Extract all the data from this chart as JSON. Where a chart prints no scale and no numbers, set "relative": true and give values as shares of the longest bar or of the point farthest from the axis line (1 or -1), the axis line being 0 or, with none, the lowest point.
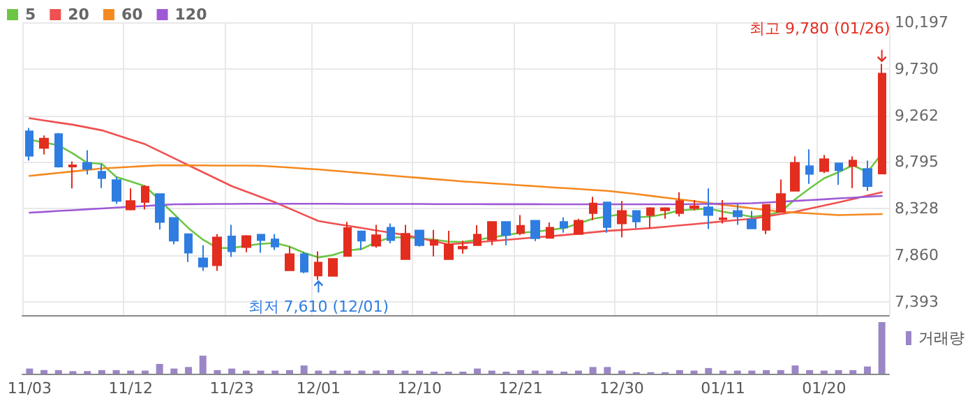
{
  "chart_data": [
    {
      "type": "candlestick",
      "legend": "top left",
      "tick_labels": "y",
      "grid": true,
      "marker": "none",
      "categories": [
        "11/03",
        null,
        null,
        null,
        null,
        null,
        null,
        "11/12",
        null,
        null,
        null,
        null,
        null,
        null,
        "11/23",
        null,
        null,
        null,
        null,
        null,
        "12/01",
        null,
        null,
        null,
        null,
        null,
        null,
        "12/10",
        null,
        null,
        null,
        null,
        null,
        null,
        "12/21",
        null,
        null,
        null,
        null,
        null,
        null,
        "12/30",
        null,
        null,
        null,
        null,
        null,
        null,
        "01/11",
        null,
        null,
        null,
        null,
        null,
        null,
        "01/20",
        null,
        null,
        null,
        null
      ],
      "ohlc": [
        [
          9104,
          9136,
          8809,
          8856
        ],
        [
          8935,
          9061,
          8870,
          9029
        ],
        [
          9076,
          9085,
          8739,
          8748
        ],
        [
          8748,
          8800,
          8529,
          8762
        ],
        [
          8786,
          8912,
          8669,
          8725
        ],
        [
          8697,
          8776,
          8533,
          8632
        ],
        [
          8613,
          8645,
          8375,
          8403
        ],
        [
          8318,
          8529,
          8309,
          8403
        ],
        [
          8393,
          8561,
          8318,
          8547
        ],
        [
          8473,
          8473,
          8117,
          8192
        ],
        [
          8234,
          8234,
          7968,
          8005
        ],
        [
          8071,
          8071,
          7790,
          7884
        ],
        [
          7828,
          7959,
          7702,
          7744
        ],
        [
          7758,
          8071,
          7702,
          8038
        ],
        [
          8048,
          8164,
          7842,
          7898
        ],
        [
          7940,
          8061,
          7888,
          8052
        ],
        [
          8066,
          8066,
          7884,
          8010
        ],
        [
          8019,
          8071,
          7912,
          7944
        ],
        [
          7706,
          7945,
          7706,
          7870
        ],
        [
          7870,
          7893,
          7678,
          7692
        ],
        [
          7655,
          7898,
          7610,
          7786
        ],
        [
          7651,
          7823,
          7651,
          7823
        ],
        [
          7851,
          8193,
          7851,
          8132
        ],
        [
          8099,
          8099,
          7912,
          8005
        ],
        [
          7954,
          8164,
          7935,
          8061
        ],
        [
          8136,
          8178,
          7978,
          8010
        ],
        [
          7818,
          8164,
          7818,
          8075
        ],
        [
          8108,
          8108,
          7945,
          7959
        ],
        [
          7963,
          8113,
          7846,
          8010
        ],
        [
          7818,
          8104,
          7818,
          7968
        ],
        [
          7926,
          8005,
          7875,
          7945
        ],
        [
          7959,
          8160,
          7959,
          8066
        ],
        [
          8015,
          8193,
          7959,
          8193
        ],
        [
          8193,
          8193,
          7959,
          8061
        ],
        [
          8080,
          8262,
          8061,
          8155
        ],
        [
          8206,
          8206,
          8001,
          8029
        ],
        [
          8033,
          8188,
          8029,
          8136
        ],
        [
          8193,
          8239,
          8085,
          8136
        ],
        [
          8071,
          8225,
          8071,
          8206
        ],
        [
          8281,
          8445,
          8211,
          8379
        ],
        [
          8389,
          8389,
          8085,
          8141
        ],
        [
          8178,
          8403,
          8038,
          8304
        ],
        [
          8304,
          8304,
          8131,
          8197
        ],
        [
          8262,
          8341,
          8127,
          8332
        ],
        [
          8309,
          8341,
          8225,
          8332
        ],
        [
          8281,
          8491,
          8248,
          8403
        ],
        [
          8332,
          8412,
          8309,
          8351
        ],
        [
          8341,
          8529,
          8122,
          8262
        ],
        [
          8220,
          8412,
          8178,
          8230
        ],
        [
          8304,
          8379,
          8164,
          8248
        ],
        [
          8216,
          8304,
          8122,
          8127
        ],
        [
          8113,
          8365,
          8071,
          8365
        ],
        [
          8295,
          8618,
          8295,
          8473
        ],
        [
          8505,
          8851,
          8505,
          8786
        ],
        [
          8753,
          8921,
          8575,
          8674
        ],
        [
          8702,
          8865,
          8683,
          8823
        ],
        [
          8781,
          8781,
          8566,
          8711
        ],
        [
          8753,
          8851,
          8533,
          8809
        ],
        [
          8725,
          8809,
          8505,
          8552
        ],
        [
          8678,
          9780,
          8678,
          9683
        ]
      ],
      "series": [
        {
          "name": "5",
          "type": "line",
          "color": "#6cc644",
          "values": [
            9019,
            8990,
            8963,
            8880,
            8786,
            8776,
            8645,
            8600,
            8552,
            8412,
            8272,
            8131,
            8015,
            7931,
            7931,
            7954,
            7973,
            7982,
            7945,
            7884,
            7837,
            7860,
            7907,
            7921,
            7991,
            8038,
            8038,
            8029,
            8015,
            7996,
            7991,
            8015,
            8038,
            8061,
            8085,
            8094,
            8113,
            8131,
            8178,
            8225,
            8248,
            8272,
            8239,
            8248,
            8272,
            8309,
            8318,
            8328,
            8295,
            8272,
            8244,
            8262,
            8295,
            8421,
            8529,
            8631,
            8692,
            8762,
            8692,
            8879
          ]
        },
        {
          "name": "20",
          "type": "line",
          "color": "#f05050",
          "values": [
            9234,
            9212,
            9190,
            9169,
            9141,
            9113,
            9066,
            9020,
            8973,
            8903,
            8833,
            8762,
            8692,
            8622,
            8552,
            8498,
            8443,
            8389,
            8327,
            8264,
            8202,
            8178,
            8155,
            8132,
            8108,
            8085,
            8061,
            8030,
            7999,
            7968,
            7979,
            7990,
            8001,
            8013,
            8025,
            8037,
            8049,
            8061,
            8075,
            8089,
            8103,
            8112,
            8122,
            8131,
            8144,
            8158,
            8171,
            8185,
            8198,
            8212,
            8225,
            8248,
            8272,
            8295,
            8326,
            8358,
            8389,
            8423,
            8457,
            8491
          ]
        },
        {
          "name": "60",
          "type": "line",
          "color": "#f5891f",
          "values": [
            8655,
            8670,
            8685,
            8700,
            8715,
            8730,
            8738,
            8746,
            8754,
            8762,
            8761,
            8761,
            8760,
            8759,
            8758,
            8758,
            8757,
            8748,
            8739,
            8729,
            8720,
            8708,
            8695,
            8683,
            8671,
            8659,
            8647,
            8635,
            8623,
            8611,
            8599,
            8590,
            8580,
            8571,
            8561,
            8552,
            8542,
            8533,
            8524,
            8514,
            8505,
            8489,
            8473,
            8455,
            8437,
            8419,
            8401,
            8383,
            8365,
            8348,
            8330,
            8313,
            8295,
            8287,
            8279,
            8270,
            8262,
            8265,
            8269,
            8272
          ]
        },
        {
          "name": "120",
          "type": "line",
          "color": "#9e5ad6",
          "values": [
            8286,
            8294,
            8303,
            8311,
            8320,
            8328,
            8337,
            8345,
            8353,
            8362,
            8370,
            8371,
            8372,
            8373,
            8374,
            8375,
            8375,
            8375,
            8375,
            8375,
            8375,
            8375,
            8374,
            8374,
            8374,
            8373,
            8373,
            8373,
            8372,
            8372,
            8372,
            8372,
            8371,
            8371,
            8371,
            8371,
            8370,
            8370,
            8370,
            8370,
            8370,
            8370,
            8370,
            8370,
            8370,
            8370,
            8372,
            8374,
            8376,
            8378,
            8380,
            8388,
            8396,
            8404,
            8412,
            8420,
            8429,
            8437,
            8446,
            8454
          ]
        }
      ],
      "ylim": [
        7257,
        10197
      ],
      "yticks": [
        {
          "value": 7393,
          "label": "7,393"
        },
        {
          "value": 7860,
          "label": "7,860"
        },
        {
          "value": 8328,
          "label": "8,328"
        },
        {
          "value": 8795,
          "label": "8,795"
        },
        {
          "value": 9262,
          "label": "9,262"
        },
        {
          "value": 9730,
          "label": "9,730"
        },
        {
          "value": 10197,
          "label": "10,197"
        }
      ],
      "annotations": [
        "최고 9,780 (01/26)",
        {
          "text": "최저 7,610 (12/01)",
          "x": "12/01",
          "y": 7610
        }
      ]
    },
    {
      "type": "bar",
      "relative": true,
      "tick_labels": "x",
      "legend": "top right",
      "categories": [
        "11/03",
        null,
        null,
        null,
        null,
        null,
        null,
        "11/12",
        null,
        null,
        null,
        null,
        null,
        null,
        "11/23",
        null,
        null,
        null,
        null,
        null,
        "12/01",
        null,
        null,
        null,
        null,
        null,
        null,
        "12/10",
        null,
        null,
        null,
        null,
        null,
        null,
        "12/21",
        null,
        null,
        null,
        null,
        null,
        null,
        "12/30",
        null,
        null,
        null,
        null,
        null,
        null,
        "01/11",
        null,
        null,
        null,
        null,
        null,
        null,
        "01/20",
        null,
        null,
        null,
        null
      ],
      "series": [
        {
          "name": "거래량",
          "color": "#9b86c6",
          "values": [
            0.1,
            0.07,
            0.07,
            0.05,
            0.05,
            0.07,
            0.07,
            0.06,
            0.06,
            0.19,
            0.1,
            0.13,
            0.35,
            0.07,
            0.1,
            0.06,
            0.06,
            0.06,
            0.07,
            0.16,
            0.06,
            0.06,
            0.06,
            0.06,
            0.06,
            0.07,
            0.06,
            0.06,
            0.04,
            0.04,
            0.04,
            0.1,
            0.06,
            0.04,
            0.07,
            0.06,
            0.06,
            0.04,
            0.06,
            0.13,
            0.13,
            0.06,
            0.03,
            0.03,
            0.03,
            0.07,
            0.06,
            0.11,
            0.06,
            0.06,
            0.06,
            0.07,
            0.07,
            0.16,
            0.07,
            0.06,
            0.07,
            0.07,
            0.14,
            1
          ]
        }
      ]
    }
  ]
}
